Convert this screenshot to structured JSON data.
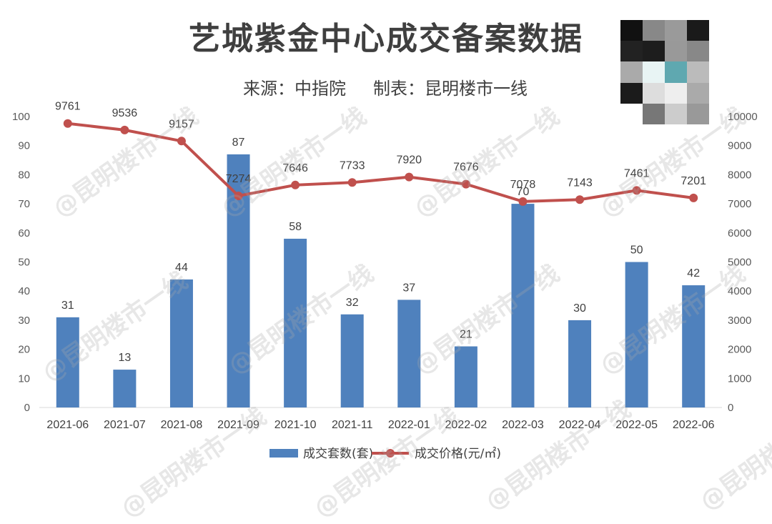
{
  "title": "艺城紫金中心成交备案数据",
  "source": "来源：中指院",
  "maker": "制表：昆明楼市一线",
  "watermark": "@昆明楼市一线",
  "chart_data": {
    "type": "bar+line",
    "categories": [
      "2021-06",
      "2021-07",
      "2021-08",
      "2021-09",
      "2021-10",
      "2021-11",
      "2022-01",
      "2022-02",
      "2022-03",
      "2022-04",
      "2022-05",
      "2022-06"
    ],
    "series": [
      {
        "name": "成交套数(套)",
        "type": "bar",
        "axis": "left",
        "color": "#4f81bd",
        "values": [
          31,
          13,
          44,
          87,
          58,
          32,
          37,
          21,
          70,
          30,
          50,
          42
        ]
      },
      {
        "name": "成交价格(元/㎡)",
        "type": "line",
        "axis": "right",
        "color": "#c0504d",
        "values": [
          9761,
          9536,
          9157,
          7274,
          7646,
          7733,
          7920,
          7676,
          7078,
          7143,
          7461,
          7201
        ]
      }
    ],
    "y_left": {
      "min": 0,
      "max": 100,
      "ticks": [
        0,
        10,
        20,
        30,
        40,
        50,
        60,
        70,
        80,
        90,
        100
      ]
    },
    "y_right": {
      "min": 0,
      "max": 10000,
      "ticks": [
        0,
        1000,
        2000,
        3000,
        4000,
        5000,
        6000,
        7000,
        8000,
        9000,
        10000
      ]
    },
    "legend_position": "bottom"
  }
}
